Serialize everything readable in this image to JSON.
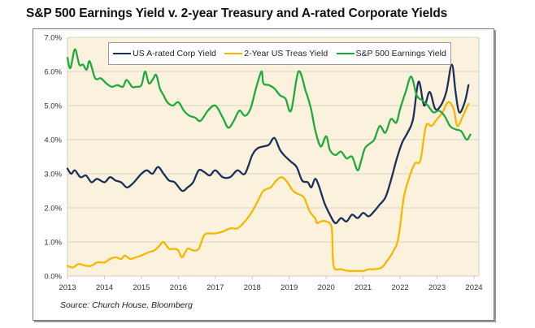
{
  "chart_data": {
    "type": "line",
    "title": "S&P 500 Earnings Yield v. 2-year Treasury and A-rated Corporate Yields",
    "xlabel": "",
    "ylabel": "",
    "source": "Source:  Church House, Bloomberg",
    "xlim": [
      2013,
      2024
    ],
    "ylim": [
      0,
      7
    ],
    "x_ticks": [
      "2013",
      "2014",
      "2015",
      "2016",
      "2017",
      "2018",
      "2019",
      "2020",
      "2021",
      "2022",
      "2023",
      "2024"
    ],
    "y_ticks": [
      "0.0%",
      "1.0%",
      "2.0%",
      "3.0%",
      "4.0%",
      "5.0%",
      "6.0%",
      "7.0%"
    ],
    "grid": true,
    "legend_position": "top",
    "series": [
      {
        "name": "US A-rated Corp Yield",
        "color": "#1b2f5b",
        "x": [
          2013.0,
          2013.1,
          2013.2,
          2013.35,
          2013.5,
          2013.65,
          2013.8,
          2014.0,
          2014.15,
          2014.3,
          2014.45,
          2014.6,
          2014.7,
          2014.8,
          2015.0,
          2015.15,
          2015.3,
          2015.45,
          2015.6,
          2015.75,
          2015.9,
          2016.1,
          2016.25,
          2016.4,
          2016.55,
          2016.7,
          2016.85,
          2017.0,
          2017.2,
          2017.4,
          2017.6,
          2017.8,
          2018.0,
          2018.15,
          2018.3,
          2018.45,
          2018.6,
          2018.75,
          2018.9,
          2019.05,
          2019.2,
          2019.35,
          2019.5,
          2019.6,
          2019.7,
          2019.8,
          2019.95,
          2020.1,
          2020.25,
          2020.4,
          2020.55,
          2020.7,
          2020.85,
          2021.0,
          2021.15,
          2021.3,
          2021.45,
          2021.6,
          2021.75,
          2021.9,
          2022.05,
          2022.2,
          2022.35,
          2022.5,
          2022.65,
          2022.8,
          2022.95,
          2023.1,
          2023.25,
          2023.4,
          2023.5,
          2023.6,
          2023.75,
          2023.85
        ],
        "y": [
          3.15,
          3.0,
          3.1,
          2.9,
          2.95,
          2.75,
          2.85,
          2.75,
          2.9,
          2.8,
          2.75,
          2.6,
          2.65,
          2.75,
          3.0,
          3.1,
          3.0,
          3.2,
          3.0,
          2.8,
          2.75,
          2.5,
          2.6,
          2.75,
          3.1,
          3.05,
          2.95,
          3.1,
          2.9,
          2.9,
          3.1,
          3.0,
          3.55,
          3.75,
          3.8,
          3.85,
          4.05,
          3.7,
          3.5,
          3.35,
          3.2,
          2.8,
          2.75,
          2.6,
          2.85,
          2.65,
          2.15,
          1.8,
          1.55,
          1.7,
          1.6,
          1.8,
          1.7,
          1.85,
          1.75,
          1.9,
          2.1,
          2.3,
          2.8,
          3.4,
          3.9,
          4.2,
          4.6,
          5.7,
          5.0,
          5.4,
          4.9,
          5.0,
          5.4,
          6.2,
          5.4,
          4.8,
          5.1,
          5.6
        ]
      },
      {
        "name": "2-Year US Treas Yield",
        "color": "#f5b800",
        "x": [
          2013.0,
          2013.15,
          2013.3,
          2013.5,
          2013.65,
          2013.8,
          2014.0,
          2014.15,
          2014.3,
          2014.45,
          2014.55,
          2014.7,
          2014.85,
          2015.0,
          2015.2,
          2015.35,
          2015.5,
          2015.6,
          2015.75,
          2015.9,
          2016.0,
          2016.1,
          2016.25,
          2016.4,
          2016.55,
          2016.7,
          2016.85,
          2017.0,
          2017.2,
          2017.4,
          2017.6,
          2017.8,
          2018.0,
          2018.15,
          2018.3,
          2018.5,
          2018.65,
          2018.8,
          2018.95,
          2019.1,
          2019.25,
          2019.4,
          2019.55,
          2019.7,
          2019.75,
          2019.85,
          2020.0,
          2020.15,
          2020.2,
          2020.4,
          2020.6,
          2020.8,
          2021.0,
          2021.15,
          2021.3,
          2021.5,
          2021.65,
          2021.8,
          2021.95,
          2022.1,
          2022.25,
          2022.4,
          2022.55,
          2022.7,
          2022.85,
          2023.0,
          2023.15,
          2023.3,
          2023.45,
          2023.55,
          2023.7,
          2023.85
        ],
        "y": [
          0.3,
          0.25,
          0.35,
          0.3,
          0.3,
          0.4,
          0.4,
          0.5,
          0.55,
          0.5,
          0.6,
          0.5,
          0.55,
          0.6,
          0.7,
          0.75,
          0.9,
          1.0,
          0.8,
          0.8,
          0.75,
          0.55,
          0.8,
          0.75,
          0.8,
          1.2,
          1.25,
          1.25,
          1.3,
          1.4,
          1.4,
          1.6,
          1.9,
          2.2,
          2.5,
          2.6,
          2.8,
          2.9,
          2.75,
          2.5,
          2.4,
          2.3,
          1.9,
          1.7,
          1.55,
          1.6,
          1.6,
          1.4,
          0.3,
          0.2,
          0.15,
          0.15,
          0.15,
          0.2,
          0.2,
          0.25,
          0.45,
          0.7,
          1.1,
          2.3,
          2.9,
          3.3,
          3.4,
          4.4,
          4.4,
          4.6,
          4.8,
          5.1,
          4.9,
          4.4,
          4.7,
          5.05
        ]
      },
      {
        "name": "S&P 500 Earnings Yield",
        "color": "#1eab3c",
        "x": [
          2013.0,
          2013.08,
          2013.2,
          2013.32,
          2013.42,
          2013.52,
          2013.6,
          2013.75,
          2013.9,
          2014.05,
          2014.2,
          2014.35,
          2014.5,
          2014.6,
          2014.75,
          2014.85,
          2015.0,
          2015.1,
          2015.2,
          2015.3,
          2015.4,
          2015.5,
          2015.6,
          2015.7,
          2015.85,
          2016.0,
          2016.15,
          2016.3,
          2016.45,
          2016.6,
          2016.8,
          2017.0,
          2017.2,
          2017.35,
          2017.5,
          2017.65,
          2017.8,
          2017.95,
          2018.1,
          2018.25,
          2018.3,
          2018.45,
          2018.6,
          2018.75,
          2018.9,
          2019.05,
          2019.25,
          2019.45,
          2019.5,
          2019.6,
          2019.7,
          2019.85,
          2020.0,
          2020.1,
          2020.25,
          2020.4,
          2020.55,
          2020.7,
          2020.85,
          2020.95,
          2021.05,
          2021.2,
          2021.3,
          2021.45,
          2021.6,
          2021.75,
          2021.9,
          2022.0,
          2022.15,
          2022.3,
          2022.45,
          2022.6,
          2022.75,
          2022.9,
          2023.05,
          2023.2,
          2023.35,
          2023.5,
          2023.65,
          2023.8,
          2023.9
        ],
        "y": [
          6.4,
          6.1,
          6.65,
          6.2,
          6.2,
          6.05,
          6.3,
          5.8,
          5.8,
          5.65,
          5.55,
          5.6,
          5.55,
          5.75,
          5.55,
          5.55,
          5.6,
          6.0,
          5.65,
          5.75,
          5.9,
          5.5,
          5.3,
          5.1,
          5.0,
          5.1,
          4.85,
          4.7,
          4.65,
          4.55,
          4.85,
          5.0,
          4.65,
          4.35,
          4.55,
          4.85,
          4.7,
          4.9,
          5.5,
          6.0,
          5.65,
          5.6,
          5.5,
          5.3,
          5.2,
          4.85,
          6.0,
          5.4,
          5.25,
          4.85,
          4.3,
          3.8,
          4.1,
          3.7,
          3.55,
          3.65,
          3.45,
          3.5,
          3.1,
          3.4,
          3.75,
          3.9,
          4.0,
          4.4,
          4.2,
          4.6,
          4.5,
          4.9,
          5.4,
          5.85,
          5.3,
          5.15,
          5.0,
          4.8,
          4.85,
          4.7,
          4.4,
          4.3,
          4.25,
          4.0,
          4.15
        ]
      }
    ]
  }
}
